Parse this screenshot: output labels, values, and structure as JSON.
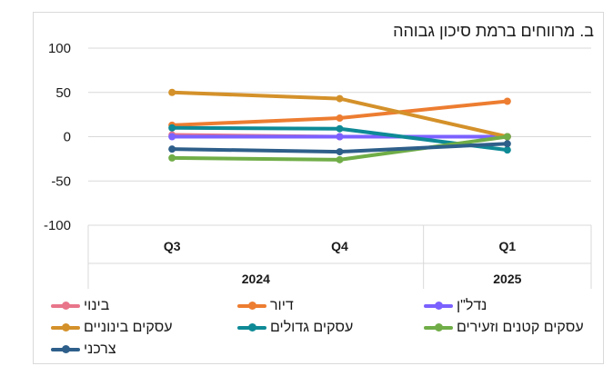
{
  "chart_data": {
    "type": "line",
    "title": "ב. מרווחים ברמת סיכון גבוהה",
    "categories": [
      "Q3",
      "Q4",
      "Q1"
    ],
    "groups": [
      {
        "label": "2024",
        "span": [
          0,
          1
        ]
      },
      {
        "label": "2025",
        "span": [
          2,
          2
        ]
      }
    ],
    "ylim": [
      -100,
      100
    ],
    "yticks": [
      -100,
      -50,
      0,
      50,
      100
    ],
    "ytick_labels": [
      "-100",
      "-50",
      "0",
      "50",
      "100"
    ],
    "grid": true,
    "legend_position": "bottom",
    "series": [
      {
        "name": "בינוי",
        "color": "#e8758a",
        "values": [
          2,
          0,
          0
        ]
      },
      {
        "name": "דיור",
        "color": "#ed7d31",
        "values": [
          13,
          21,
          40
        ]
      },
      {
        "name": "נדל\"ן",
        "color": "#7b61ff",
        "values": [
          0,
          0,
          0
        ]
      },
      {
        "name": "עסקים בינוניים",
        "color": "#d4912a",
        "values": [
          50,
          43,
          0
        ]
      },
      {
        "name": "עסקים גדולים",
        "color": "#0e8a96",
        "values": [
          10,
          9,
          -15
        ]
      },
      {
        "name": "עסקים קטנים וזעירים",
        "color": "#70ad47",
        "values": [
          -24,
          -26,
          0
        ]
      },
      {
        "name": "צרכני",
        "color": "#2e5f8a",
        "values": [
          -14,
          -17,
          -8
        ]
      }
    ]
  }
}
